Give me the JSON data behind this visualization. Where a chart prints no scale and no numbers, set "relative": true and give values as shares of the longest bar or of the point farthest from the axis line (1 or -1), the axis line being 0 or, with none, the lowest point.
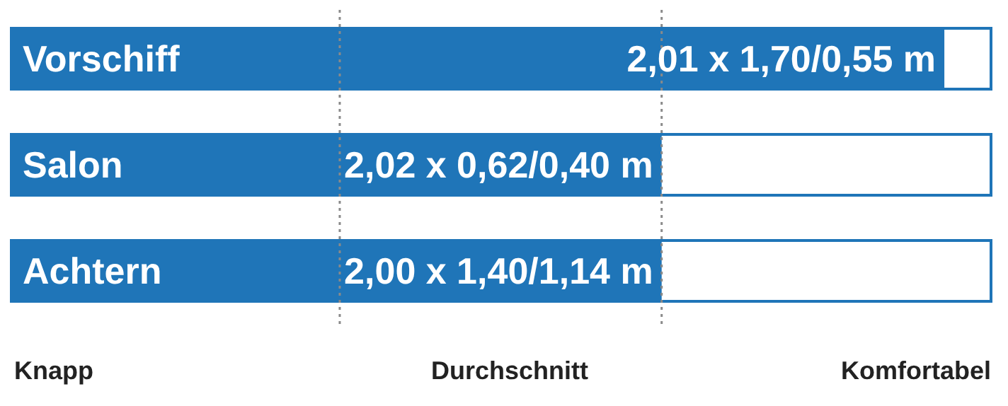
{
  "chart_data": {
    "type": "bar",
    "orientation": "horizontal",
    "relative": true,
    "categories": [
      "Vorschiff",
      "Salon",
      "Achtern"
    ],
    "values": [
      1,
      0.697,
      0.697
    ],
    "color": "#1f75b8",
    "ref_lines": [
      {
        "axis": "x",
        "value": 0.352,
        "line_style": "dotted",
        "color": "#8a8a8a"
      },
      {
        "axis": "x",
        "value": 0.697,
        "line_style": "dotted",
        "color": "#8a8a8a"
      }
    ],
    "annotations": [
      "2,01 x 1,70/0,55 m",
      "2,02 x 0,62/0,40 m",
      "2,00 x 1,40/1,14 m",
      "Knapp",
      "Durchschnitt",
      "Komfortabel"
    ],
    "grid": false,
    "legend": false
  }
}
